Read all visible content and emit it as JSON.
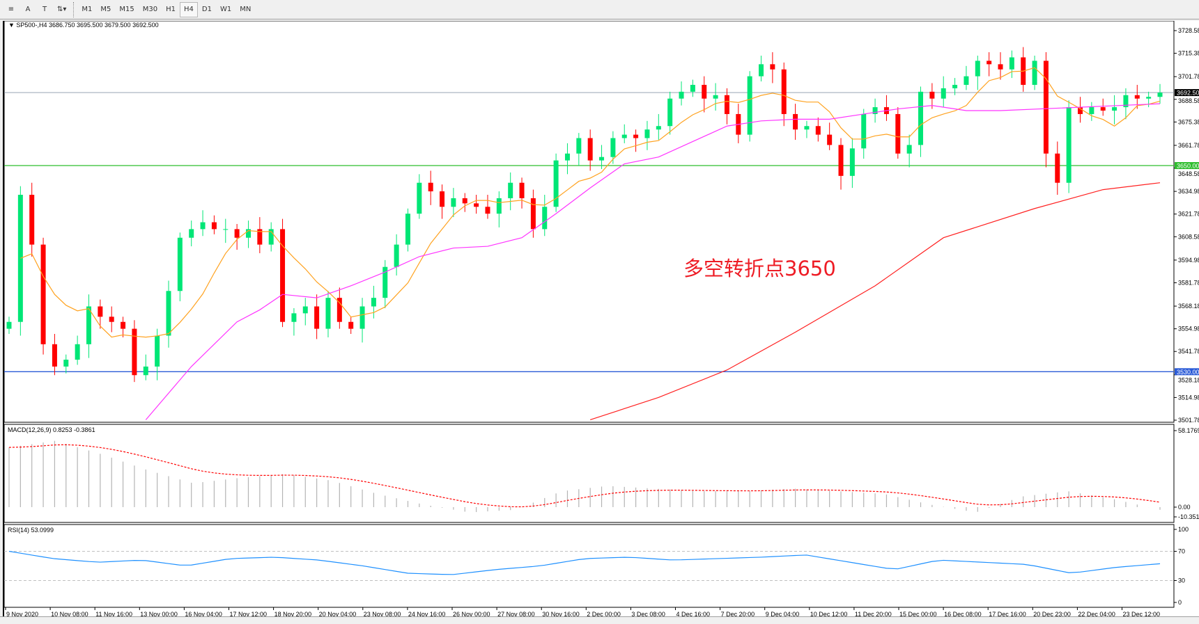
{
  "toolbar": {
    "tools": [
      {
        "icon": "line-style-icon"
      },
      {
        "label": "A",
        "icon": "text-icon"
      },
      {
        "label": "T",
        "icon": "text-label-icon"
      },
      {
        "icon": "arrows-icon"
      }
    ],
    "timeframes": [
      "M1",
      "M5",
      "M15",
      "M30",
      "H1",
      "H4",
      "D1",
      "W1",
      "MN"
    ],
    "active_timeframe": "H4"
  },
  "chart_data": {
    "type": "candlestick",
    "title": "SP500-,H4  3686.750 3695.500 3679.500 3692.500",
    "annotation": "多空转折点3650",
    "ylim": [
      3501.78,
      3728.58
    ],
    "price_ticks": [
      "3728.58",
      "3715.38",
      "3701.78",
      "3688.58",
      "3675.38",
      "3661.78",
      "3648.58",
      "3634.98",
      "3621.78",
      "3608.58",
      "3594.98",
      "3581.78",
      "3568.18",
      "3554.98",
      "3541.78",
      "3528.18",
      "3514.98",
      "3501.78"
    ],
    "current_price": "3692.50",
    "hlines": [
      {
        "value": 3650.0,
        "label": "3650.00",
        "color": "#2ebd2e"
      },
      {
        "value": 3530.0,
        "label": "3530.00",
        "color": "#2b5bd7"
      }
    ],
    "colors": {
      "up": "#00e676",
      "down": "#ff0000",
      "ma_fast": "#ffa21f",
      "ma_mid": "#ff33ff",
      "ma_slow": "#ff2020"
    },
    "closes": [
      3559,
      3633,
      3604,
      3546,
      3533,
      3537,
      3546,
      3568,
      3562,
      3559,
      3555,
      3528,
      3533,
      3551,
      3577,
      3608,
      3613,
      3617,
      3613,
      3613,
      3608,
      3613,
      3604,
      3613,
      3559,
      3564,
      3568,
      3555,
      3573,
      3559,
      3555,
      3568,
      3573,
      3591,
      3604,
      3622,
      3640,
      3635,
      3626,
      3631,
      3628,
      3626,
      3622,
      3631,
      3640,
      3631,
      3613,
      3626,
      3653,
      3657,
      3666,
      3653,
      3655,
      3666,
      3668,
      3666,
      3671,
      3673,
      3689,
      3693,
      3697,
      3689,
      3691,
      3680,
      3668,
      3702,
      3709,
      3706,
      3680,
      3671,
      3673,
      3668,
      3662,
      3644,
      3660,
      3680,
      3684,
      3680,
      3657,
      3662,
      3693,
      3689,
      3695,
      3697,
      3702,
      3711,
      3709,
      3706,
      3713,
      3697,
      3711,
      3657,
      3640,
      3684,
      3680,
      3684,
      3682,
      3684,
      3691,
      3689,
      3690,
      3692.5
    ],
    "ma_mid": [
      [
        12,
        3502
      ],
      [
        16,
        3533
      ],
      [
        20,
        3559
      ],
      [
        22,
        3566
      ],
      [
        24,
        3575
      ],
      [
        27,
        3573
      ],
      [
        30,
        3580
      ],
      [
        33,
        3588
      ],
      [
        36,
        3597
      ],
      [
        39,
        3602
      ],
      [
        42,
        3603
      ],
      [
        45,
        3608
      ],
      [
        48,
        3622
      ],
      [
        51,
        3637
      ],
      [
        54,
        3651
      ],
      [
        57,
        3655
      ],
      [
        60,
        3664
      ],
      [
        63,
        3673
      ],
      [
        66,
        3676
      ],
      [
        69,
        3677
      ],
      [
        72,
        3677
      ],
      [
        75,
        3680
      ],
      [
        78,
        3683
      ],
      [
        81,
        3685
      ],
      [
        84,
        3682
      ],
      [
        87,
        3682
      ],
      [
        101,
        3686
      ]
    ],
    "ma_slow": [
      [
        51,
        3502
      ],
      [
        57,
        3515
      ],
      [
        63,
        3531
      ],
      [
        69,
        3553
      ],
      [
        76,
        3580
      ],
      [
        82,
        3608
      ],
      [
        90,
        3625
      ],
      [
        96,
        3636
      ],
      [
        101,
        3640
      ]
    ],
    "time_labels": [
      "9 Nov 2020",
      "10 Nov 08:00",
      "11 Nov 16:00",
      "13 Nov 00:00",
      "16 Nov 04:00",
      "17 Nov 12:00",
      "18 Nov 20:00",
      "20 Nov 04:00",
      "23 Nov 08:00",
      "24 Nov 16:00",
      "26 Nov 00:00",
      "27 Nov 08:00",
      "30 Nov 16:00",
      "2 Dec 00:00",
      "3 Dec 08:00",
      "4 Dec 16:00",
      "7 Dec 20:00",
      "9 Dec 04:00",
      "10 Dec 12:00",
      "11 Dec 20:00",
      "15 Dec 00:00",
      "16 Dec 08:00",
      "17 Dec 16:00",
      "20 Dec 23:00",
      "22 Dec 04:00",
      "23 Dec 12:00"
    ],
    "macd": {
      "label": "MACD(12,26,9) 0.8253 -0.3861",
      "ylim": [
        -10.351,
        58.1769
      ],
      "ticks": [
        "58.1769",
        "0.00",
        "-10.351"
      ],
      "values": [
        45,
        50,
        40,
        28,
        18,
        22,
        25,
        20,
        10,
        2,
        -4,
        -2,
        12,
        16,
        14,
        12,
        12,
        14,
        12,
        10,
        2,
        -4,
        8,
        12,
        6,
        -2
      ]
    },
    "rsi": {
      "label": "RSI(14) 53.0999",
      "ylim": [
        0,
        100
      ],
      "levels": [
        70,
        30
      ],
      "ticks": [
        "100",
        "70",
        "30",
        "0"
      ],
      "color": "#1e90ff",
      "values": [
        70,
        60,
        55,
        58,
        50,
        60,
        62,
        58,
        50,
        40,
        38,
        45,
        50,
        60,
        62,
        58,
        60,
        62,
        65,
        55,
        45,
        58,
        55,
        52,
        40,
        48,
        53
      ]
    }
  }
}
